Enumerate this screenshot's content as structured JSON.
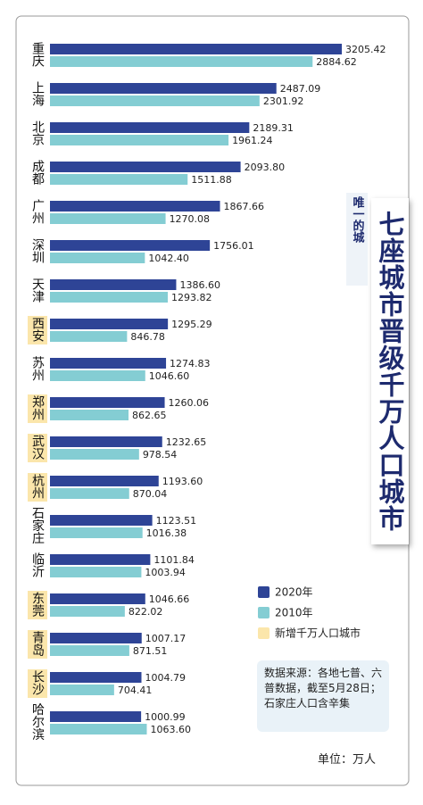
{
  "chart_data": {
    "type": "bar",
    "orientation": "horizontal",
    "title": "七座城市晋级千万人口城市",
    "subtitle": "唯一的城",
    "categories": [
      "重庆",
      "上海",
      "北京",
      "成都",
      "广州",
      "深圳",
      "天津",
      "西安",
      "苏州",
      "郑州",
      "武汉",
      "杭州",
      "石家庄",
      "临沂",
      "东莞",
      "青岛",
      "长沙",
      "哈尔滨"
    ],
    "series": [
      {
        "name": "2020年",
        "color": "#2e4496",
        "values": [
          3205.42,
          2487.09,
          2189.31,
          2093.8,
          1867.66,
          1756.01,
          1386.6,
          1295.29,
          1274.83,
          1260.06,
          1232.65,
          1193.6,
          1123.51,
          1101.84,
          1046.66,
          1007.17,
          1004.79,
          1000.99
        ],
        "value_labels": [
          "3205.42",
          "2487.09",
          "2189.31",
          "2093.80",
          "1867.66",
          "1756.01",
          "1386.60",
          "1295.29",
          "1274.83",
          "1260.06",
          "1232.65",
          "1193.60",
          "1123.51",
          "1101.84",
          "1046.66",
          "1007.17",
          "1004.79",
          "1000.99"
        ]
      },
      {
        "name": "2010年",
        "color": "#84cdd3",
        "values": [
          2884.62,
          2301.92,
          1961.24,
          1511.88,
          1270.08,
          1042.4,
          1293.82,
          846.78,
          1046.6,
          862.65,
          978.54,
          870.04,
          1016.38,
          1003.94,
          822.02,
          871.51,
          704.41,
          1063.6
        ],
        "value_labels": [
          "2884.62",
          "2301.92",
          "1961.24",
          "1511.88",
          "1270.08",
          "1042.40",
          "1293.82",
          "846.78",
          "1046.60",
          "862.65",
          "978.54",
          "870.04",
          "1016.38",
          "1003.94",
          "822.02",
          "871.51",
          "704.41",
          "1063.60"
        ]
      }
    ],
    "highlight_name": "新增千万人口城市",
    "highlight_color": "#fbe6ab",
    "highlighted": [
      false,
      false,
      false,
      false,
      false,
      false,
      false,
      true,
      false,
      true,
      true,
      true,
      false,
      false,
      true,
      true,
      true,
      false
    ],
    "source": "数据来源：各地七普、六普数据，截至5月28日；石家庄人口含辛集",
    "unit": "单位：万人"
  }
}
